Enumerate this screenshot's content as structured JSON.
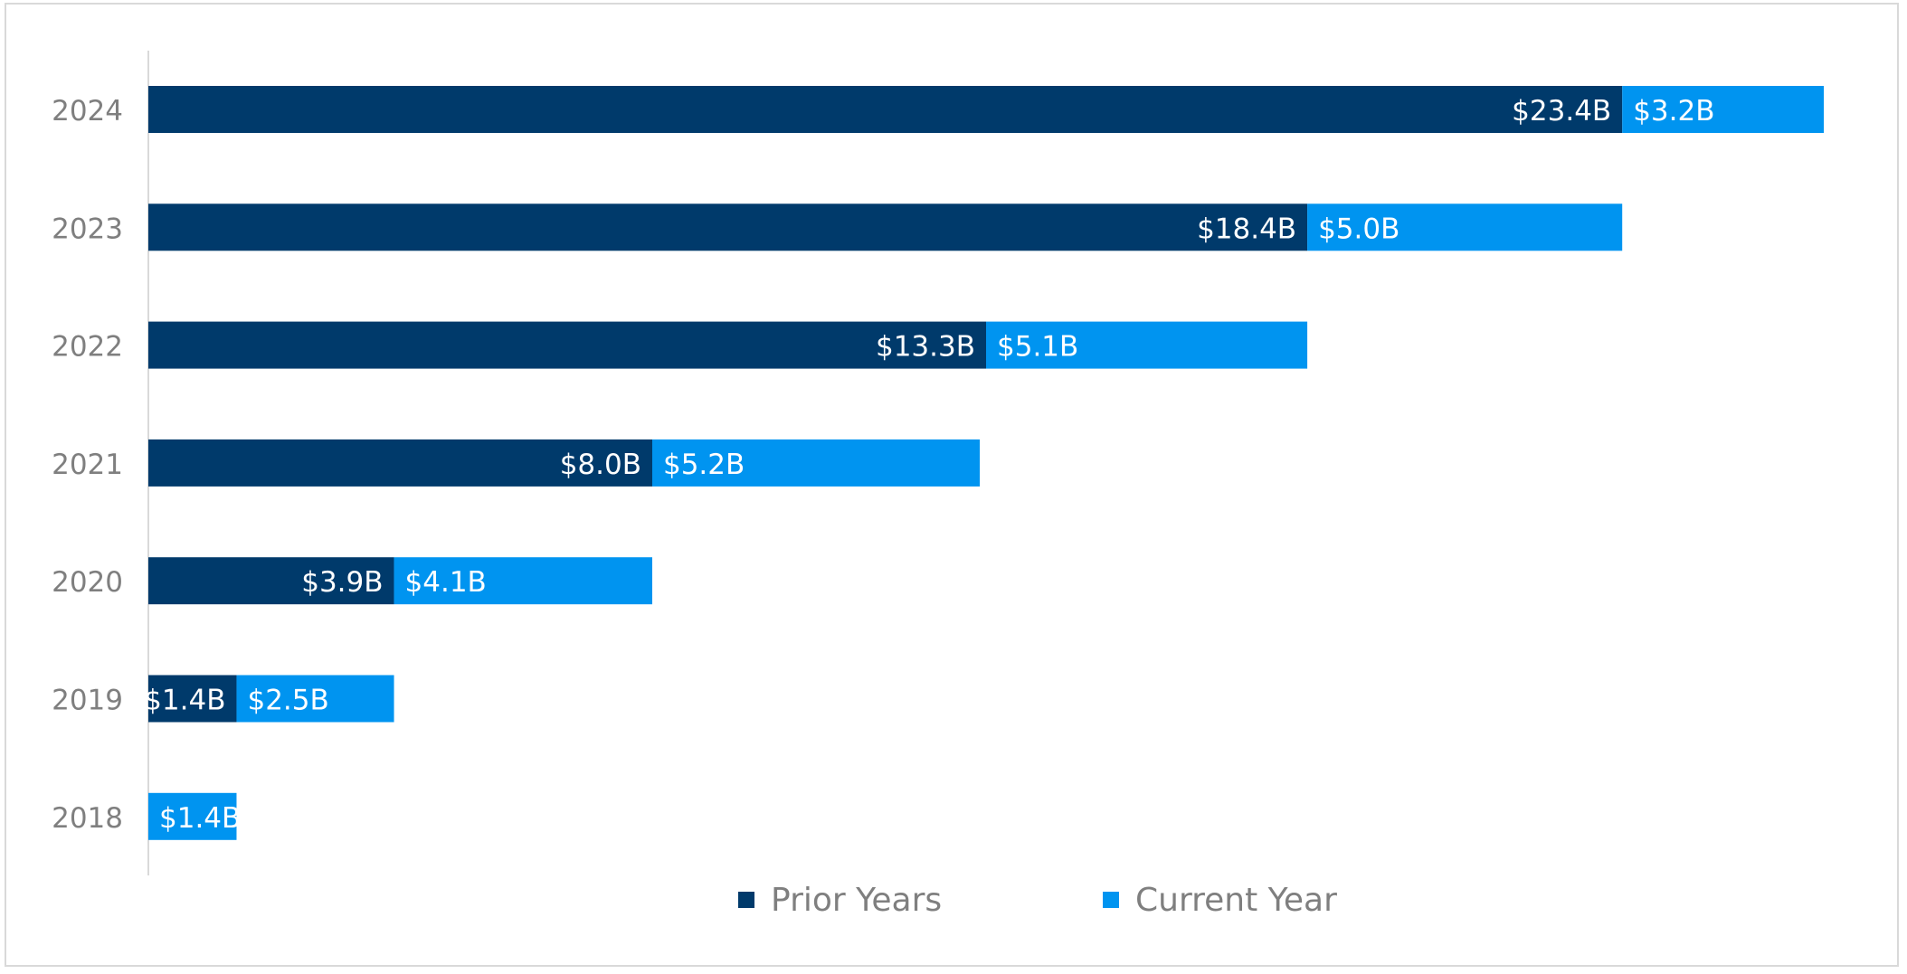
{
  "chart_data": {
    "type": "bar",
    "orientation": "horizontal",
    "stacked": true,
    "title": "",
    "xlabel": "",
    "ylabel": "",
    "categories": [
      "2024",
      "2023",
      "2022",
      "2021",
      "2020",
      "2019",
      "2018"
    ],
    "series": [
      {
        "name": "Prior Years",
        "color": "#003a6b",
        "values": [
          23.4,
          18.4,
          13.3,
          8.0,
          3.9,
          1.4,
          0
        ],
        "labels": [
          "$23.4B",
          "$18.4B",
          "$13.3B",
          "$8.0B",
          "$3.9B",
          "$1.4B",
          ""
        ]
      },
      {
        "name": "Current Year",
        "color": "#0094f0",
        "values": [
          3.2,
          5.0,
          5.1,
          5.2,
          4.1,
          2.5,
          1.4
        ],
        "labels": [
          "$3.2B",
          "$5.0B",
          "$5.1B",
          "$5.2B",
          "$4.1B",
          "$2.5B",
          "$1.4B"
        ]
      }
    ],
    "xlim": [
      0,
      26.6
    ],
    "grid": false,
    "legend": "bottom",
    "axis_color": "#d9d9d9",
    "tick_label_color": "#7f7f7f",
    "data_label_color": "#ffffff"
  }
}
